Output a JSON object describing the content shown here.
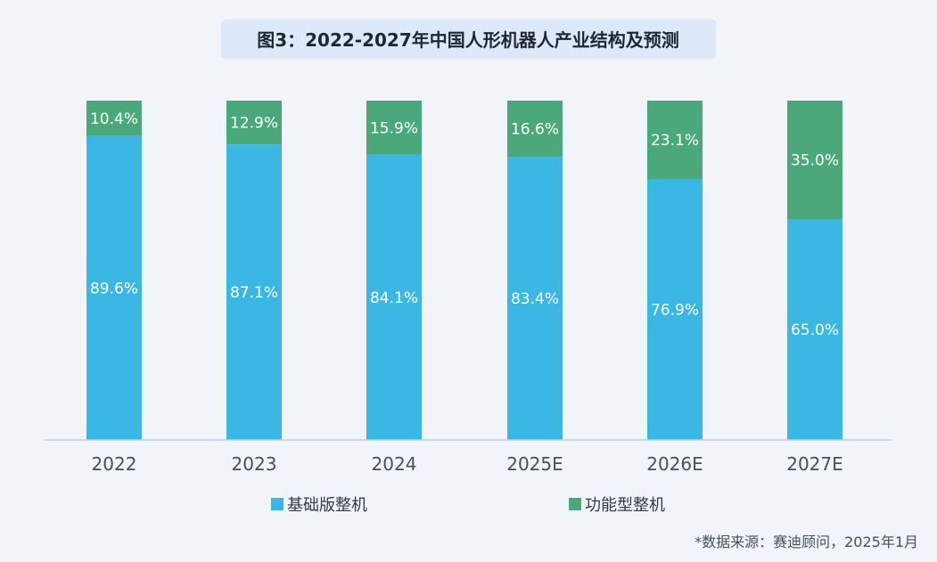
{
  "chart_data": {
    "type": "bar",
    "stacked": true,
    "title": "图3：2022-2027年中国人形机器人产业结构及预测",
    "categories": [
      "2022",
      "2023",
      "2024",
      "2025E",
      "2026E",
      "2027E"
    ],
    "series": [
      {
        "name": "基础版整机",
        "color": "#3ab8e3",
        "values": [
          89.6,
          87.1,
          84.1,
          83.4,
          76.9,
          65.0
        ],
        "labels": [
          "89.6%",
          "87.1%",
          "84.1%",
          "83.4%",
          "76.9%",
          "65.0%"
        ]
      },
      {
        "name": "功能型整机",
        "color": "#4aa87a",
        "values": [
          10.4,
          12.9,
          15.9,
          16.6,
          23.1,
          35.0
        ],
        "labels": [
          "10.4%",
          "12.9%",
          "15.9%",
          "16.6%",
          "23.1%",
          "35.0%"
        ]
      }
    ],
    "ylim": [
      0,
      100
    ],
    "grid": false,
    "legend_position": "bottom"
  },
  "source": "*数据来源：赛迪顾问，2025年1月"
}
